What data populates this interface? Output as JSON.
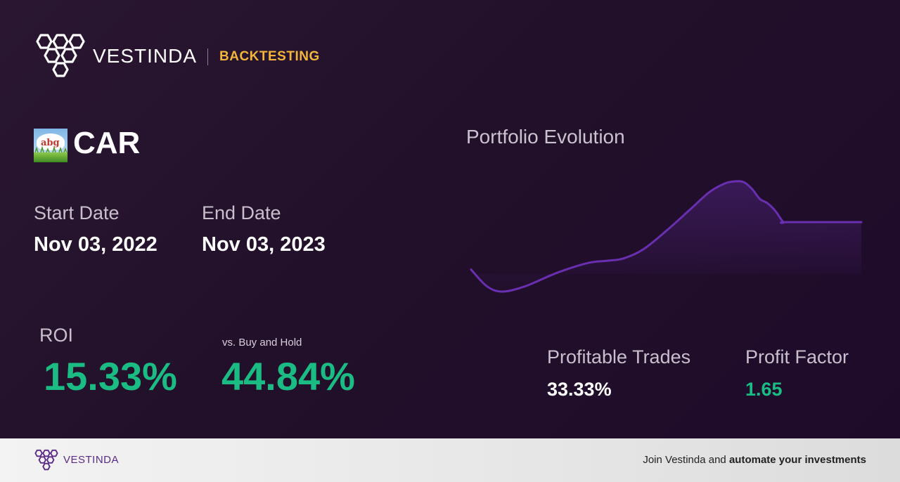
{
  "brand": {
    "name": "VESTINDA",
    "section": "BACKTESTING"
  },
  "ticker": {
    "symbol": "CAR",
    "logo_icon": "abg-logo-icon",
    "logo_text": "abg"
  },
  "dates": {
    "start_label": "Start Date",
    "start_value": "Nov 03, 2022",
    "end_label": "End Date",
    "end_value": "Nov 03, 2023"
  },
  "roi": {
    "label": "ROI",
    "value": "15.33%",
    "vs_label": "vs. Buy and Hold",
    "vs_value": "44.84%"
  },
  "stats": {
    "profitable_label": "Profitable Trades",
    "profitable_value": "33.33%",
    "factor_label": "Profit Factor",
    "factor_value": "1.65"
  },
  "chart": {
    "title": "Portfolio Evolution"
  },
  "chart_data": {
    "type": "line",
    "title": "Portfolio Evolution",
    "xlabel": "",
    "ylabel": "",
    "grid": false,
    "legend": "none",
    "line_color": "#6a2fb0",
    "x": [
      0,
      0.04,
      0.08,
      0.14,
      0.22,
      0.3,
      0.35,
      0.39,
      0.44,
      0.5,
      0.56,
      0.61,
      0.65,
      0.68,
      0.7,
      0.72,
      0.74,
      0.76,
      0.78,
      0.8,
      0.81,
      1.0
    ],
    "values": [
      0.2,
      0.05,
      0.0,
      0.05,
      0.17,
      0.26,
      0.28,
      0.3,
      0.38,
      0.55,
      0.74,
      0.9,
      0.98,
      1.0,
      0.99,
      0.93,
      0.84,
      0.8,
      0.73,
      0.63,
      0.63,
      0.63
    ]
  },
  "footer": {
    "brand": "VESTINDA",
    "cta_plain": "Join Vestinda and ",
    "cta_bold": "automate your investments"
  },
  "colors": {
    "accent_yellow": "#f2b53a",
    "positive_green": "#1bbc84",
    "brand_purple": "#5b2a86"
  }
}
